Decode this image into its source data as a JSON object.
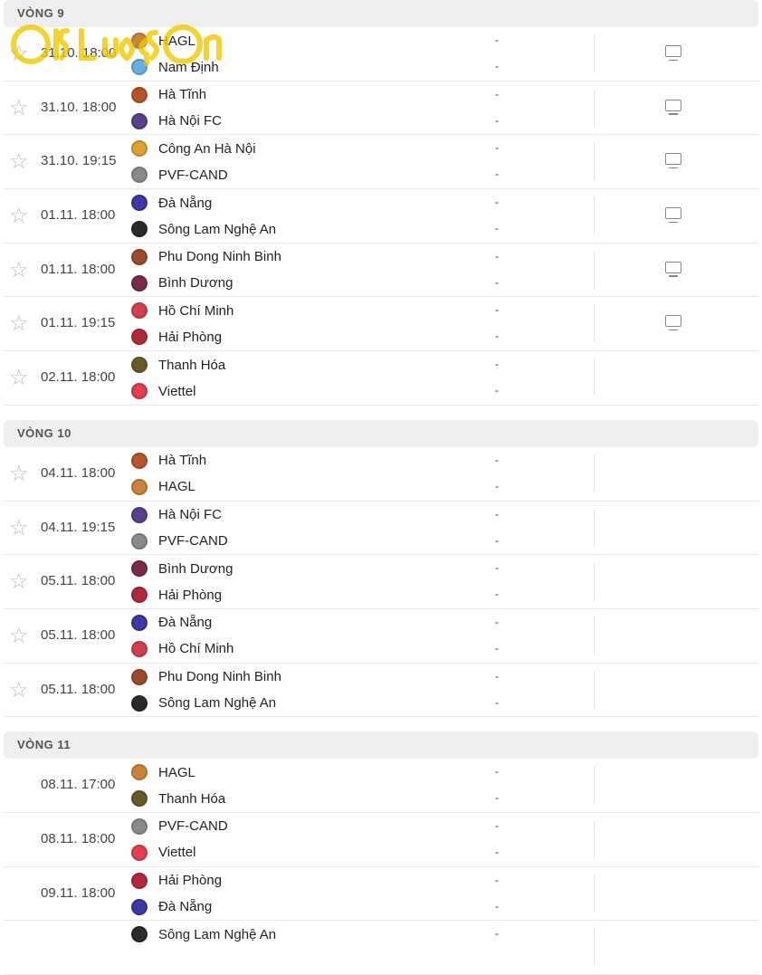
{
  "watermark": "iSLuongSon",
  "rounds": [
    {
      "title": "VÒNG 9",
      "starred": true,
      "matches": [
        {
          "time": "31.10. 18:00",
          "home": "HAGL",
          "away": "Nam Định",
          "home_score": "-",
          "away_score": "-",
          "tv": true,
          "home_color": "#c8843a",
          "away_color": "#6aaee0"
        },
        {
          "time": "31.10. 18:00",
          "home": "Hà Tĩnh",
          "away": "Hà Nội FC",
          "home_score": "-",
          "away_score": "-",
          "tv": true,
          "home_color": "#b5542e",
          "away_color": "#5a3f8a"
        },
        {
          "time": "31.10. 19:15",
          "home": "Công An Hà Nội",
          "away": "PVF-CAND",
          "home_score": "-",
          "away_score": "-",
          "tv": true,
          "home_color": "#e0a030",
          "away_color": "#8a8a8a"
        },
        {
          "time": "01.11. 18:00",
          "home": "Đà Nẵng",
          "away": "Sông Lam Nghệ An",
          "home_score": "-",
          "away_score": "-",
          "tv": true,
          "home_color": "#3a3aa0",
          "away_color": "#2a2a2a"
        },
        {
          "time": "01.11. 18:00",
          "home": "Phu Dong Ninh Binh",
          "away": "Bình Dương",
          "home_score": "-",
          "away_score": "-",
          "tv": true,
          "home_color": "#9a4a2a",
          "away_color": "#7a2a4a"
        },
        {
          "time": "01.11. 19:15",
          "home": "Hồ Chí Minh",
          "away": "Hải Phòng",
          "home_score": "-",
          "away_score": "-",
          "tv": true,
          "home_color": "#d04050",
          "away_color": "#b02a3a"
        },
        {
          "time": "02.11. 18:00",
          "home": "Thanh Hóa",
          "away": "Viettel",
          "home_score": "-",
          "away_score": "-",
          "tv": false,
          "home_color": "#6a5a2a",
          "away_color": "#e04050"
        }
      ]
    },
    {
      "title": "VÒNG 10",
      "starred": true,
      "matches": [
        {
          "time": "04.11. 18:00",
          "home": "Hà Tĩnh",
          "away": "HAGL",
          "home_score": "-",
          "away_score": "-",
          "tv": false,
          "home_color": "#b5542e",
          "away_color": "#c8843a"
        },
        {
          "time": "04.11. 19:15",
          "home": "Hà Nội FC",
          "away": "PVF-CAND",
          "home_score": "-",
          "away_score": "-",
          "tv": false,
          "home_color": "#5a3f8a",
          "away_color": "#8a8a8a"
        },
        {
          "time": "05.11. 18:00",
          "home": "Bình Dương",
          "away": "Hải Phòng",
          "home_score": "-",
          "away_score": "-",
          "tv": false,
          "home_color": "#7a2a4a",
          "away_color": "#b02a3a"
        },
        {
          "time": "05.11. 18:00",
          "home": "Đà Nẵng",
          "away": "Hồ Chí Minh",
          "home_score": "-",
          "away_score": "-",
          "tv": false,
          "home_color": "#3a3aa0",
          "away_color": "#d04050"
        },
        {
          "time": "05.11. 18:00",
          "home": "Phu Dong Ninh Binh",
          "away": "Sông Lam Nghệ An",
          "home_score": "-",
          "away_score": "-",
          "tv": false,
          "home_color": "#9a4a2a",
          "away_color": "#2a2a2a"
        }
      ]
    },
    {
      "title": "VÒNG 11",
      "starred": false,
      "matches": [
        {
          "time": "08.11. 17:00",
          "home": "HAGL",
          "away": "Thanh Hóa",
          "home_score": "-",
          "away_score": "-",
          "tv": false,
          "home_color": "#c8843a",
          "away_color": "#6a5a2a"
        },
        {
          "time": "08.11. 18:00",
          "home": "PVF-CAND",
          "away": "Viettel",
          "home_score": "-",
          "away_score": "-",
          "tv": false,
          "home_color": "#8a8a8a",
          "away_color": "#e04050"
        },
        {
          "time": "09.11. 18:00",
          "home": "Hải Phòng",
          "away": "Đà Nẵng",
          "home_score": "-",
          "away_score": "-",
          "tv": false,
          "home_color": "#b02a3a",
          "away_color": "#3a3aa0"
        },
        {
          "time": "",
          "home": "Sông Lam Nghệ An",
          "away": "",
          "home_score": "-",
          "away_score": "",
          "tv": false,
          "home_color": "#2a2a2a",
          "away_color": ""
        }
      ]
    }
  ]
}
